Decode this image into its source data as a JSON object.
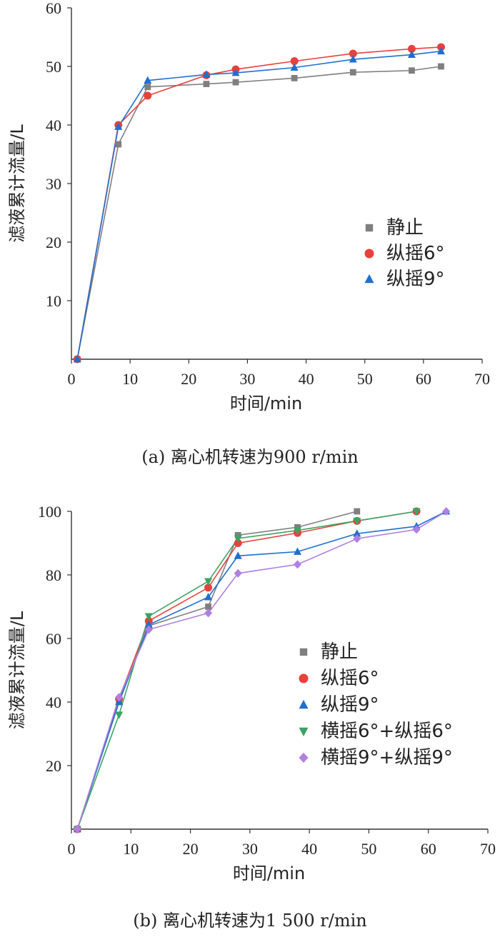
{
  "chart_data": [
    {
      "type": "line",
      "caption": "(a) 离心机转速为900 r/min",
      "xlabel": "时间/min",
      "ylabel": "滤液累计流量/L",
      "xlim": [
        0,
        70
      ],
      "ylim": [
        0,
        60
      ],
      "xticks": [
        0,
        10,
        20,
        30,
        40,
        50,
        60,
        70
      ],
      "yticks": [
        10,
        20,
        30,
        40,
        50,
        60
      ],
      "grid": false,
      "legend_position": "right-middle",
      "series": [
        {
          "name": "静止",
          "marker": "square",
          "color": "#7f7f7f",
          "x": [
            1,
            8,
            13,
            23,
            28,
            38,
            48,
            58,
            63
          ],
          "y": [
            0,
            36.7,
            46.5,
            47.0,
            47.3,
            48.0,
            49.0,
            49.3,
            50.0
          ]
        },
        {
          "name": "纵摇6°",
          "marker": "circle",
          "color": "#e8413c",
          "x": [
            1,
            8,
            13,
            23,
            28,
            38,
            48,
            58,
            63
          ],
          "y": [
            0,
            40.0,
            45.0,
            48.5,
            49.5,
            50.9,
            52.2,
            53.0,
            53.3
          ]
        },
        {
          "name": "纵摇9°",
          "marker": "triangle-up",
          "color": "#1f6fd1",
          "x": [
            1,
            8,
            13,
            23,
            28,
            38,
            48,
            58,
            63
          ],
          "y": [
            0,
            39.7,
            47.6,
            48.6,
            48.9,
            49.8,
            51.2,
            52.0,
            52.6
          ]
        }
      ]
    },
    {
      "type": "line",
      "caption": "(b) 离心机转速为1 500 r/min",
      "xlabel": "时间/min",
      "ylabel": "滤液累计流量/L",
      "xlim": [
        0,
        70
      ],
      "ylim": [
        0,
        100
      ],
      "xticks": [
        0,
        10,
        20,
        30,
        40,
        50,
        60,
        70
      ],
      "yticks": [
        20,
        40,
        60,
        80,
        100
      ],
      "grid": false,
      "legend_position": "right-middle",
      "series": [
        {
          "name": "静止",
          "marker": "square",
          "color": "#7f7f7f",
          "x": [
            1,
            8,
            13,
            23,
            28,
            38,
            48
          ],
          "y": [
            0,
            40.0,
            64.0,
            70.0,
            92.5,
            95.0,
            100.0
          ]
        },
        {
          "name": "纵摇6°",
          "marker": "circle",
          "color": "#e8413c",
          "x": [
            1,
            8,
            13,
            23,
            28,
            38,
            48,
            58
          ],
          "y": [
            0,
            41.0,
            65.5,
            76.0,
            90.0,
            93.2,
            97.0,
            100.0
          ]
        },
        {
          "name": "纵摇9°",
          "marker": "triangle-up",
          "color": "#1f6fd1",
          "x": [
            1,
            8,
            13,
            23,
            28,
            38,
            48,
            58,
            63
          ],
          "y": [
            0,
            40.0,
            64.3,
            73.0,
            86.0,
            87.3,
            93.0,
            95.3,
            100.0
          ]
        },
        {
          "name": "横摇6°+纵摇6°",
          "marker": "triangle-down",
          "color": "#3aa463",
          "x": [
            1,
            8,
            13,
            23,
            28,
            38,
            48,
            58
          ],
          "y": [
            0,
            36.0,
            67.0,
            78.0,
            91.5,
            94.0,
            97.0,
            100.0
          ]
        },
        {
          "name": "横摇9°+纵摇9°",
          "marker": "diamond",
          "color": "#b07fe3",
          "x": [
            1,
            8,
            13,
            23,
            28,
            38,
            48,
            58,
            63
          ],
          "y": [
            0,
            41.5,
            62.8,
            68.0,
            80.5,
            83.3,
            91.4,
            94.3,
            100.0
          ]
        }
      ]
    }
  ]
}
